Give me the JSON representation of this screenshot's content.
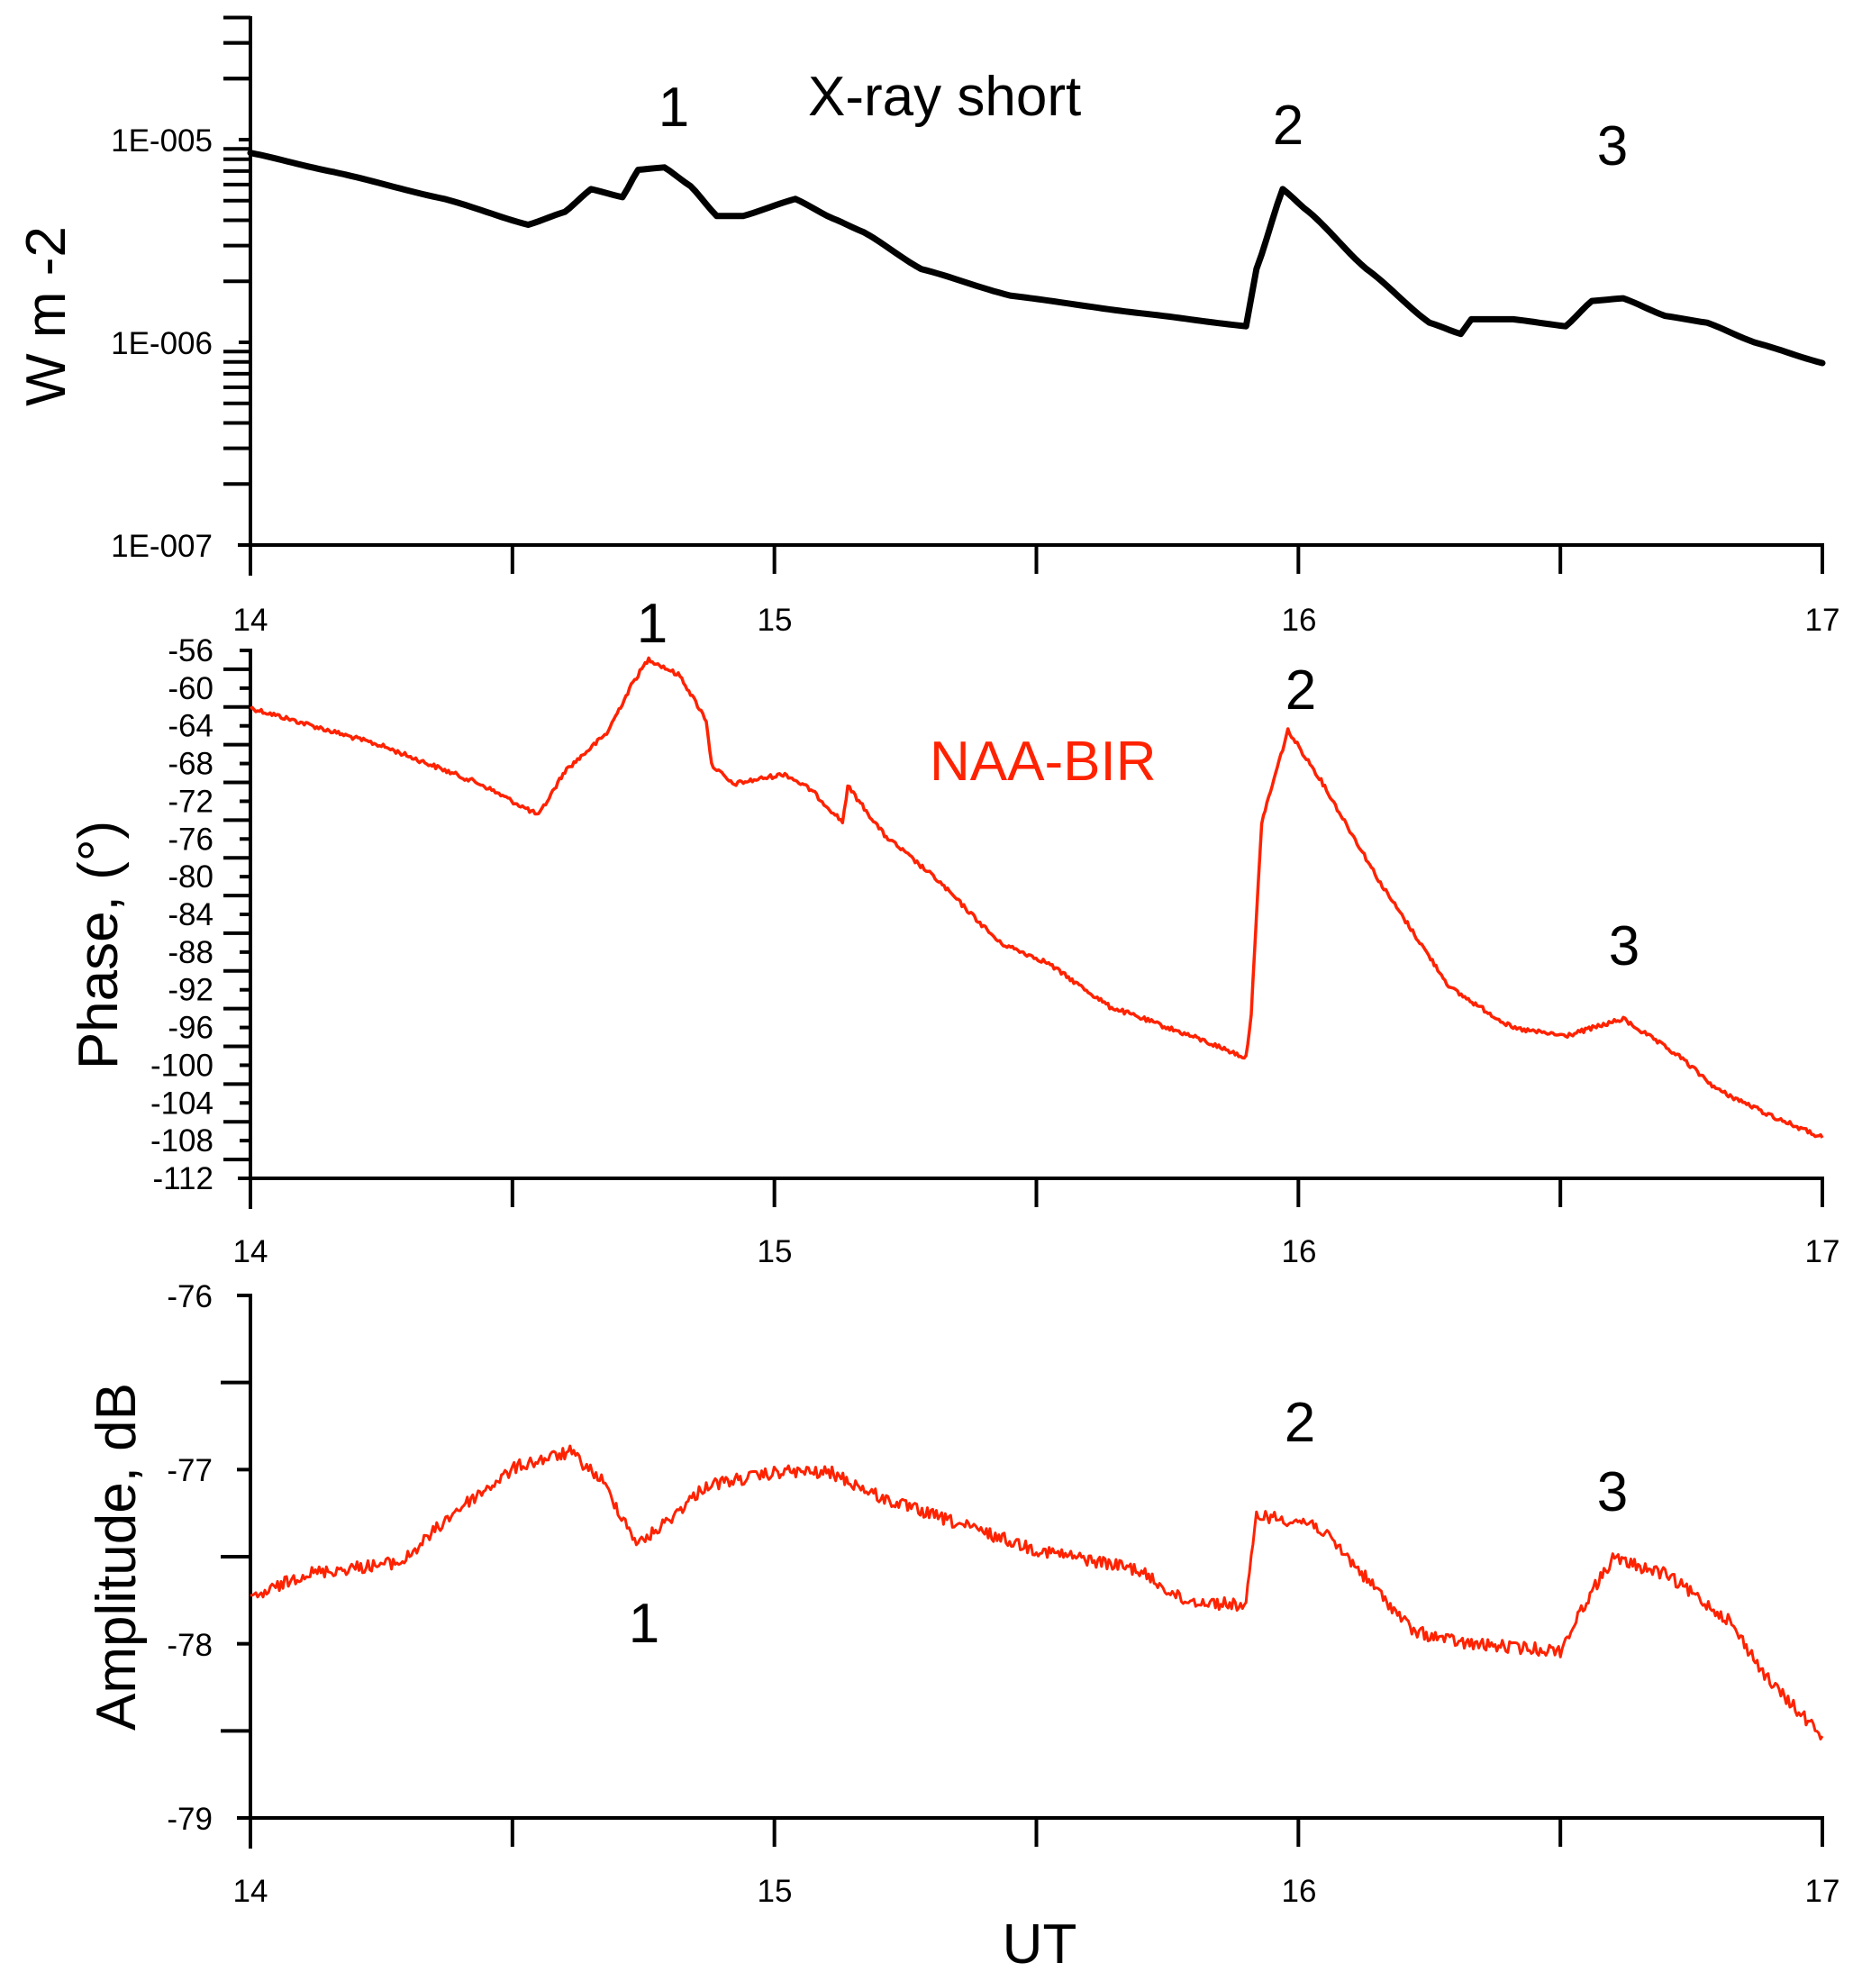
{
  "chart_data": [
    {
      "type": "line",
      "panel": "top",
      "title": "X-ray short",
      "xlabel": "",
      "ylabel": "W m -2",
      "yscale": "log",
      "xlim": [
        14,
        17
      ],
      "ylim": [
        1e-07,
        4e-05
      ],
      "x_ticks": [
        14,
        14.5,
        15,
        15.5,
        16,
        16.5,
        17
      ],
      "x_tick_labels": [
        "14",
        "15",
        "16",
        "17"
      ],
      "y_tick_labels": [
        "1E-005",
        "1E-006",
        "1E-007"
      ],
      "line_color": "#000000",
      "annotations": [
        "1",
        "2",
        "3"
      ],
      "series": [
        {
          "name": "X-ray short",
          "x": [
            14.0,
            14.15,
            14.37,
            14.53,
            14.6,
            14.65,
            14.71,
            14.74,
            14.79,
            14.84,
            14.89,
            14.94,
            15.04,
            15.11,
            15.17,
            15.28,
            15.45,
            15.69,
            15.9,
            15.92,
            15.97,
            16.02,
            16.13,
            16.25,
            16.31,
            16.33,
            16.41,
            16.51,
            16.56,
            16.62,
            16.7,
            16.78,
            16.87,
            17.0
          ],
          "y": [
            8.6e-06,
            7e-06,
            5.1e-06,
            3.8e-06,
            4.4e-06,
            5.7e-06,
            5.2e-06,
            7.1e-06,
            7.3e-06,
            5.9e-06,
            4.2e-06,
            4.2e-06,
            5.1e-06,
            4.1e-06,
            3.5e-06,
            2.3e-06,
            1.7e-06,
            1.4e-06,
            1.2e-06,
            2.3e-06,
            5.7e-06,
            4.4e-06,
            2.3e-06,
            1.25e-06,
            1.1e-06,
            1.3e-06,
            1.3e-06,
            1.2e-06,
            1.6e-06,
            1.65e-06,
            1.35e-06,
            1.25e-06,
            1e-06,
            7.9e-07
          ]
        }
      ]
    },
    {
      "type": "line",
      "panel": "middle",
      "title": "NAA-BIR",
      "xlabel": "",
      "ylabel": "Phase, (°)",
      "xlim": [
        14,
        17
      ],
      "ylim": [
        -112,
        -56
      ],
      "x_ticks": [
        14,
        14.5,
        15,
        15.5,
        16,
        16.5,
        17
      ],
      "x_tick_labels": [
        "14",
        "15",
        "16",
        "17"
      ],
      "y_tick_labels": [
        "-56",
        "-60",
        "-64",
        "-68",
        "-72",
        "-76",
        "-80",
        "-84",
        "-88",
        "-92",
        "-96",
        "-100",
        "-104",
        "-108",
        "-112"
      ],
      "line_color": "#ff2200",
      "annotations": [
        "1",
        "2",
        "3"
      ],
      "series": [
        {
          "name": "NAA-BIR phase",
          "x": [
            14.0,
            14.25,
            14.44,
            14.55,
            14.6,
            14.68,
            14.73,
            14.76,
            14.82,
            14.87,
            14.88,
            14.92,
            15.02,
            15.07,
            15.13,
            15.14,
            15.21,
            15.31,
            15.43,
            15.52,
            15.64,
            15.81,
            15.9,
            15.91,
            15.93,
            15.98,
            16.04,
            16.16,
            16.29,
            16.41,
            16.51,
            16.62,
            16.73,
            16.8,
            16.9,
            17.0
          ],
          "y": [
            -62.1,
            -66.1,
            -70.2,
            -73.5,
            -68.8,
            -64.8,
            -59.4,
            -56.9,
            -58.7,
            -63.4,
            -68.1,
            -70.2,
            -69.1,
            -70.8,
            -74.2,
            -70.4,
            -75.6,
            -80.3,
            -87.0,
            -89.1,
            -93.8,
            -97.2,
            -99.2,
            -94.5,
            -74.2,
            -64.5,
            -69.5,
            -81.0,
            -91.8,
            -96.1,
            -96.9,
            -95.1,
            -99.2,
            -102.6,
            -105.3,
            -107.7
          ]
        }
      ]
    },
    {
      "type": "line",
      "panel": "bottom",
      "title": "",
      "xlabel": "UT",
      "ylabel": "Amplitude, dB",
      "xlim": [
        14,
        17
      ],
      "ylim": [
        -79,
        -76
      ],
      "x_ticks": [
        14,
        14.5,
        15,
        15.5,
        16,
        16.5,
        17
      ],
      "x_tick_labels": [
        "14",
        "15",
        "16",
        "17"
      ],
      "y_tick_labels": [
        "-76",
        "-77",
        "-78",
        "-79"
      ],
      "line_color": "#ff2200",
      "annotations": [
        "1",
        "2",
        "3"
      ],
      "series": [
        {
          "name": "NAA-BIR amplitude",
          "x": [
            14.0,
            14.1,
            14.29,
            14.39,
            14.51,
            14.61,
            14.67,
            14.74,
            14.79,
            14.87,
            15.02,
            15.11,
            15.21,
            15.35,
            15.5,
            15.69,
            15.78,
            15.9,
            15.92,
            16.03,
            16.09,
            16.22,
            16.32,
            16.5,
            16.55,
            16.6,
            16.7,
            16.82,
            16.9,
            17.0
          ],
          "y": [
            -77.75,
            -77.6,
            -77.53,
            -77.24,
            -76.98,
            -76.9,
            -77.06,
            -77.43,
            -77.31,
            -77.09,
            -77.01,
            -77.02,
            -77.17,
            -77.31,
            -77.46,
            -77.57,
            -77.75,
            -77.78,
            -77.26,
            -77.31,
            -77.49,
            -77.93,
            -78.0,
            -78.04,
            -77.75,
            -77.51,
            -77.6,
            -77.86,
            -78.22,
            -78.53
          ]
        }
      ]
    }
  ]
}
